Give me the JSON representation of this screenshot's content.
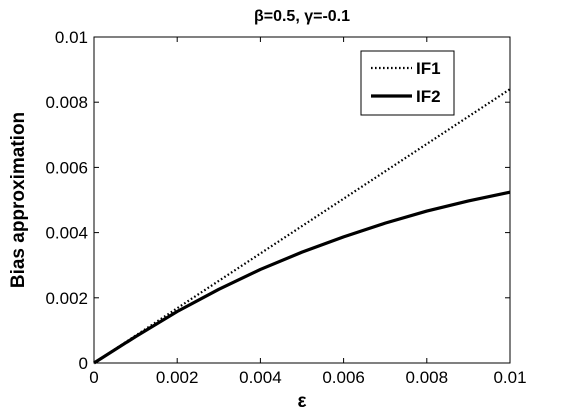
{
  "chart_data": {
    "type": "line",
    "title": "β=0.5, γ=-0.1",
    "xlabel": "ε",
    "ylabel": "Bias approximation",
    "xlim": [
      0,
      0.01
    ],
    "ylim": [
      0,
      0.01
    ],
    "x_ticks": [
      0,
      0.002,
      0.004,
      0.006,
      0.008,
      0.01
    ],
    "x_tick_labels": [
      "0",
      "0.002",
      "0.004",
      "0.006",
      "0.008",
      "0.01"
    ],
    "y_ticks": [
      0,
      0.002,
      0.004,
      0.006,
      0.008,
      0.01
    ],
    "y_tick_labels": [
      "0",
      "0.002",
      "0.004",
      "0.006",
      "0.008",
      "0.01"
    ],
    "grid": false,
    "legend_position": "top-right",
    "series": [
      {
        "name": "IF1",
        "style": "dotted",
        "x": [
          0,
          0.001,
          0.002,
          0.003,
          0.004,
          0.005,
          0.006,
          0.007,
          0.008,
          0.009,
          0.01
        ],
        "y": [
          0,
          0.00084,
          0.00168,
          0.00252,
          0.00336,
          0.0042,
          0.00504,
          0.00588,
          0.00672,
          0.00756,
          0.0084
        ]
      },
      {
        "name": "IF2",
        "style": "solid",
        "x": [
          0,
          0.001,
          0.002,
          0.003,
          0.004,
          0.005,
          0.006,
          0.007,
          0.008,
          0.009,
          0.01
        ],
        "y": [
          0,
          0.00081,
          0.00158,
          0.00226,
          0.00287,
          0.0034,
          0.00387,
          0.00429,
          0.00466,
          0.00497,
          0.00524
        ]
      }
    ]
  }
}
